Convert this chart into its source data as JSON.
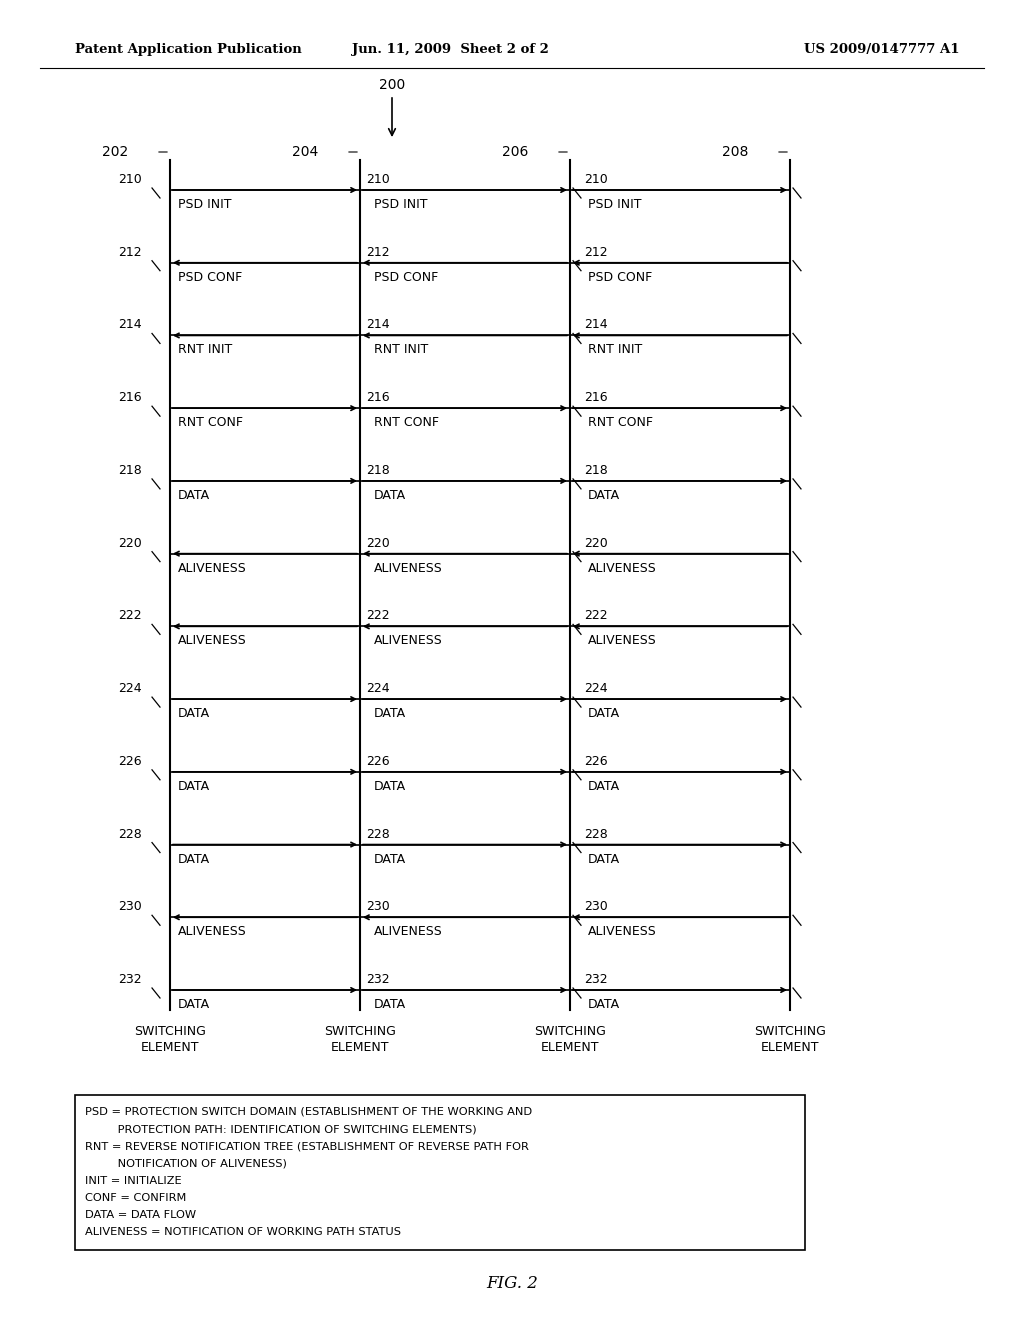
{
  "header_left": "Patent Application Publication",
  "header_center": "Jun. 11, 2009  Sheet 2 of 2",
  "header_right": "US 2009/0147777 A1",
  "fig_label": "FIG. 2",
  "diagram_label": "200",
  "col_ref_labels": [
    "202",
    "204",
    "206",
    "208"
  ],
  "col_names": [
    "SWITCHING\nELEMENT",
    "SWITCHING\nELEMENT",
    "SWITCHING\nELEMENT",
    "SWITCHING\nELEMENT"
  ],
  "message_rows": [
    {
      "id": "210",
      "label": "PSD INIT",
      "direction": "right"
    },
    {
      "id": "212",
      "label": "PSD CONF",
      "direction": "left"
    },
    {
      "id": "214",
      "label": "RNT INIT",
      "direction": "left"
    },
    {
      "id": "216",
      "label": "RNT CONF",
      "direction": "right"
    },
    {
      "id": "218",
      "label": "DATA",
      "direction": "right"
    },
    {
      "id": "220",
      "label": "ALIVENESS",
      "direction": "left"
    },
    {
      "id": "222",
      "label": "ALIVENESS",
      "direction": "left"
    },
    {
      "id": "224",
      "label": "DATA",
      "direction": "right"
    },
    {
      "id": "226",
      "label": "DATA",
      "direction": "right"
    },
    {
      "id": "228",
      "label": "DATA",
      "direction": "right"
    },
    {
      "id": "230",
      "label": "ALIVENESS",
      "direction": "left"
    },
    {
      "id": "232",
      "label": "DATA",
      "direction": "right"
    }
  ],
  "legend_lines": [
    "PSD = PROTECTION SWITCH DOMAIN (ESTABLISHMENT OF THE WORKING AND",
    "         PROTECTION PATH: IDENTIFICATION OF SWITCHING ELEMENTS)",
    "RNT = REVERSE NOTIFICATION TREE (ESTABLISHMENT OF REVERSE PATH FOR",
    "         NOTIFICATION OF ALIVENESS)",
    "INIT = INITIALIZE",
    "CONF = CONFIRM",
    "DATA = DATA FLOW",
    "ALIVENESS = NOTIFICATION OF WORKING PATH STATUS"
  ],
  "bg_color": "#ffffff",
  "line_color": "#000000",
  "text_color": "#000000"
}
